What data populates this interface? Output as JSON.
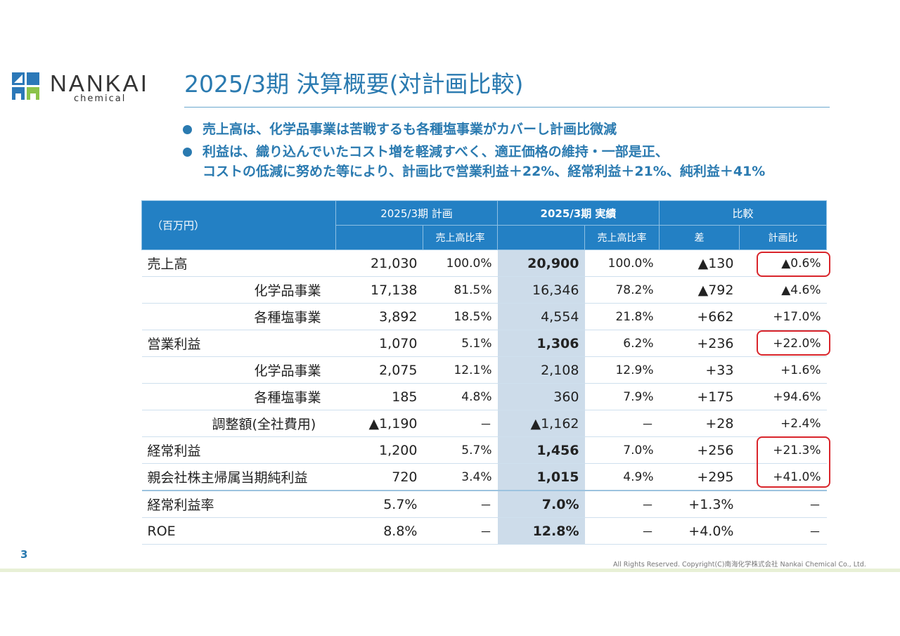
{
  "logo": {
    "name": "NANKAI",
    "sub": "chemical"
  },
  "title": "2025/3期 決算概要(対計画比較)",
  "bullets": [
    [
      "売上高は、化学品事業は苦戦するも各種塩事業がカバーし計画比微減"
    ],
    [
      "利益は、織り込んでいたコスト増を軽減すべく、適正価格の維持・一部是正、",
      "コストの低減に努めた等により、計画比で営業利益＋22%、経常利益＋21%、純利益＋41%"
    ]
  ],
  "table": {
    "unit": "（百万円）",
    "groups": {
      "plan": "2025/3期 計画",
      "actual": "2025/3期 実績",
      "compare": "比較"
    },
    "subheaders": {
      "plan_ratio": "売上高比率",
      "actual_ratio": "売上高比率",
      "diff": "差",
      "plan_pct": "計画比"
    },
    "rows": [
      {
        "label": "売上高",
        "plan": "21,030",
        "plan_ratio": "100.0%",
        "actual": "20,900",
        "actual_ratio": "100.0%",
        "diff": "▲130",
        "pct": "▲0.6%"
      },
      {
        "label": "化学品事業",
        "plan": "17,138",
        "plan_ratio": "81.5%",
        "actual": "16,346",
        "actual_ratio": "78.2%",
        "diff": "▲792",
        "pct": "▲4.6%"
      },
      {
        "label": "各種塩事業",
        "plan": "3,892",
        "plan_ratio": "18.5%",
        "actual": "4,554",
        "actual_ratio": "21.8%",
        "diff": "+662",
        "pct": "+17.0%"
      },
      {
        "label": "営業利益",
        "plan": "1,070",
        "plan_ratio": "5.1%",
        "actual": "1,306",
        "actual_ratio": "6.2%",
        "diff": "+236",
        "pct": "+22.0%"
      },
      {
        "label": "化学品事業",
        "plan": "2,075",
        "plan_ratio": "12.1%",
        "actual": "2,108",
        "actual_ratio": "12.9%",
        "diff": "+33",
        "pct": "+1.6%"
      },
      {
        "label": "各種塩事業",
        "plan": "185",
        "plan_ratio": "4.8%",
        "actual": "360",
        "actual_ratio": "7.9%",
        "diff": "+175",
        "pct": "+94.6%"
      },
      {
        "label": "調整額(全社費用)",
        "plan": "▲1,190",
        "plan_ratio": "－",
        "actual": "▲1,162",
        "actual_ratio": "－",
        "diff": "+28",
        "pct": "+2.4%"
      },
      {
        "label": "経常利益",
        "plan": "1,200",
        "plan_ratio": "5.7%",
        "actual": "1,456",
        "actual_ratio": "7.0%",
        "diff": "+256",
        "pct": "+21.3%"
      },
      {
        "label": "親会社株主帰属当期純利益",
        "plan": "720",
        "plan_ratio": "3.4%",
        "actual": "1,015",
        "actual_ratio": "4.9%",
        "diff": "+295",
        "pct": "+41.0%"
      },
      {
        "label": "経常利益率",
        "plan": "5.7%",
        "plan_ratio": "－",
        "actual": "7.0%",
        "actual_ratio": "－",
        "diff": "+1.3%",
        "pct": "－"
      },
      {
        "label": "ROE",
        "plan": "8.8%",
        "plan_ratio": "－",
        "actual": "12.8%",
        "actual_ratio": "－",
        "diff": "+4.0%",
        "pct": "－"
      }
    ]
  },
  "page_number": "3",
  "copyright": "All Rights Reserved. Copyright(C)南海化学株式会社 Nankai Chemical Co., Ltd.",
  "colors": {
    "accent": "#2a7ab0",
    "header": "#2380c4",
    "actual_col": "#cddcea",
    "highlight": "#d9252b"
  }
}
